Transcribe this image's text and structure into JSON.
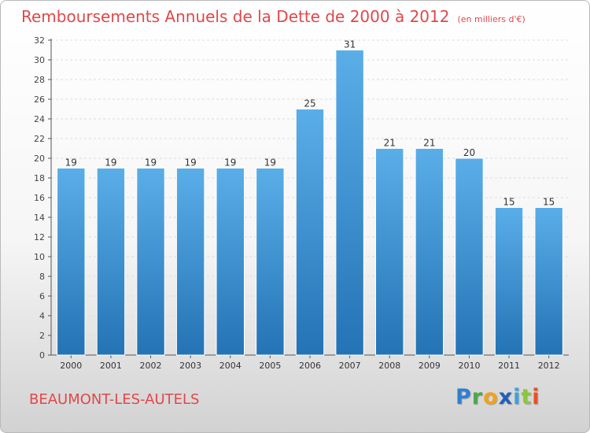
{
  "header": {
    "title": "Remboursements Annuels de la Dette de 2000 à 2012",
    "unit": "(en milliers d'€)"
  },
  "footer": {
    "town": "BEAUMONT-LES-AUTELS",
    "logo_letters": [
      "P",
      "r",
      "o",
      "x",
      "i",
      "t",
      "i"
    ]
  },
  "colors": {
    "title": "#e0484a",
    "bar_top": "#5aaee8",
    "bar_bottom": "#2473b5"
  },
  "chart_data": {
    "type": "bar",
    "title": "Remboursements Annuels de la Dette de 2000 à 2012",
    "xlabel": "",
    "ylabel": "",
    "categories": [
      "2000",
      "2001",
      "2002",
      "2003",
      "2004",
      "2005",
      "2006",
      "2007",
      "2008",
      "2009",
      "2010",
      "2011",
      "2012"
    ],
    "values": [
      19,
      19,
      19,
      19,
      19,
      19,
      25,
      31,
      21,
      21,
      20,
      15,
      15
    ],
    "ylim": [
      0,
      32
    ],
    "yticks": [
      0,
      2,
      4,
      6,
      8,
      10,
      12,
      14,
      16,
      18,
      20,
      22,
      24,
      26,
      28,
      30,
      32
    ],
    "grid": true
  }
}
